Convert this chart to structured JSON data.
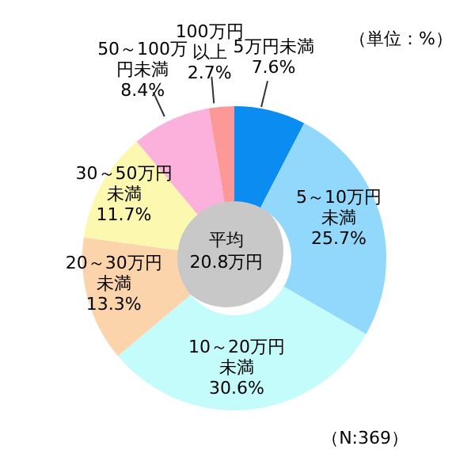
{
  "chart_data": {
    "type": "donut",
    "categories": [
      "5万円未満",
      "5～10万円未満",
      "10～20万円未満",
      "20～30万円未満",
      "30～50万円未満",
      "50～100万円未満",
      "100万円以上"
    ],
    "values": [
      7.6,
      25.7,
      30.6,
      13.3,
      11.7,
      8.4,
      2.7
    ],
    "value_labels": [
      "7.6%",
      "25.7%",
      "30.6%",
      "13.3%",
      "11.7%",
      "8.4%",
      "2.7%"
    ],
    "colors": [
      "#0a8cf0",
      "#92d8fc",
      "#c4fcfc",
      "#fcd4ac",
      "#fcf8b0",
      "#fcb0dc",
      "#fc9898"
    ],
    "legend": false,
    "annotations": [
      "平均\n20.8万円",
      "（単位：%）",
      "（N:369）"
    ]
  }
}
